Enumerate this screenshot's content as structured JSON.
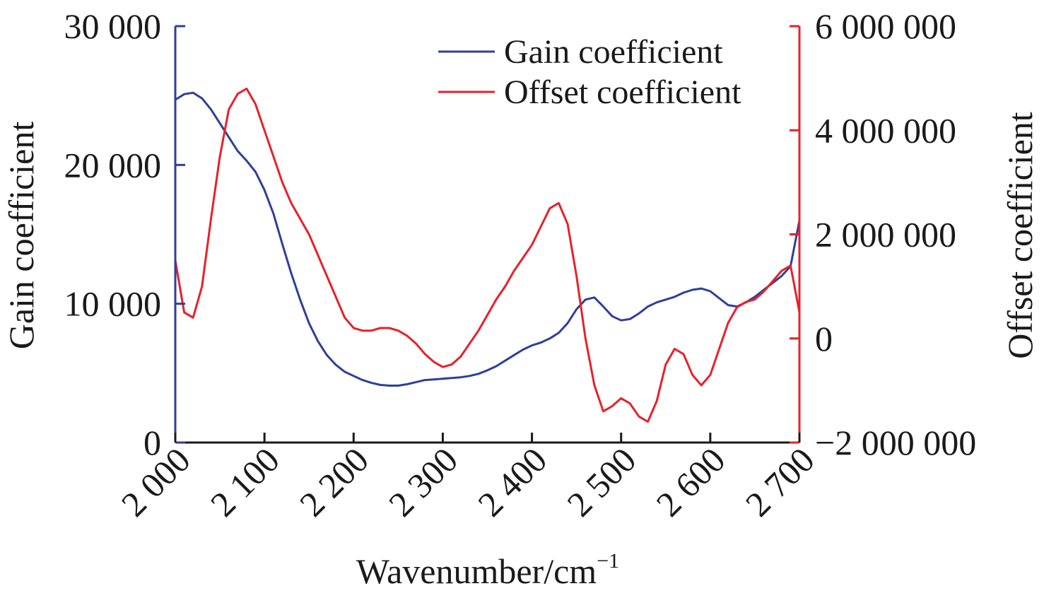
{
  "chart_data": {
    "type": "line",
    "xlabel": "Wavenumber/cm",
    "xlabel_sup": "−1",
    "ylabel_left": "Gain coefficient",
    "ylabel_right": "Offset coefficient",
    "xlim": [
      2000,
      2700
    ],
    "ylim_left": [
      0,
      30000
    ],
    "ylim_right": [
      -2000000,
      6000000
    ],
    "x_ticks": [
      2000,
      2100,
      2200,
      2300,
      2400,
      2500,
      2600,
      2700
    ],
    "x_tick_labels": [
      "2 000",
      "2 100",
      "2 200",
      "2 300",
      "2 400",
      "2 500",
      "2 600",
      "2 700"
    ],
    "y_left_ticks": [
      0,
      10000,
      20000,
      30000
    ],
    "y_left_tick_labels": [
      "0",
      "10 000",
      "20 000",
      "30 000"
    ],
    "y_right_ticks": [
      -2000000,
      0,
      2000000,
      4000000,
      6000000
    ],
    "y_right_tick_labels": [
      "−2 000 000",
      "0",
      "2 000 000",
      "4 000 000",
      "6 000 000"
    ],
    "legend_position": "top-right",
    "grid": false,
    "series": [
      {
        "name": "Gain coefficient",
        "axis": "left",
        "color": "#2e3f9a",
        "x": [
          2000,
          2010,
          2020,
          2030,
          2040,
          2050,
          2060,
          2070,
          2080,
          2090,
          2100,
          2110,
          2120,
          2130,
          2140,
          2150,
          2160,
          2170,
          2180,
          2190,
          2200,
          2210,
          2220,
          2230,
          2240,
          2250,
          2260,
          2270,
          2280,
          2290,
          2300,
          2310,
          2320,
          2330,
          2340,
          2350,
          2360,
          2370,
          2380,
          2390,
          2400,
          2410,
          2420,
          2430,
          2440,
          2450,
          2460,
          2470,
          2480,
          2490,
          2500,
          2510,
          2520,
          2530,
          2540,
          2550,
          2560,
          2570,
          2580,
          2590,
          2600,
          2610,
          2620,
          2630,
          2640,
          2650,
          2660,
          2670,
          2680,
          2690,
          2700
        ],
        "values": [
          24700,
          25100,
          25200,
          24800,
          24000,
          23000,
          22000,
          21000,
          20300,
          19500,
          18200,
          16500,
          14300,
          12200,
          10300,
          8600,
          7300,
          6300,
          5600,
          5100,
          4800,
          4500,
          4300,
          4150,
          4100,
          4100,
          4200,
          4350,
          4500,
          4550,
          4600,
          4650,
          4700,
          4800,
          4950,
          5200,
          5500,
          5900,
          6300,
          6700,
          7000,
          7200,
          7500,
          7900,
          8600,
          9600,
          10300,
          10450,
          9800,
          9100,
          8800,
          8900,
          9300,
          9800,
          10100,
          10300,
          10500,
          10800,
          11000,
          11100,
          10900,
          10400,
          9900,
          9800,
          10100,
          10500,
          11000,
          11500,
          12000,
          12700,
          16000
        ]
      },
      {
        "name": "Offset coefficient",
        "axis": "right",
        "color": "#e8202a",
        "x": [
          2000,
          2010,
          2020,
          2030,
          2040,
          2050,
          2060,
          2070,
          2080,
          2090,
          2100,
          2110,
          2120,
          2130,
          2140,
          2150,
          2160,
          2170,
          2180,
          2190,
          2200,
          2210,
          2220,
          2230,
          2240,
          2250,
          2260,
          2270,
          2280,
          2290,
          2300,
          2310,
          2320,
          2330,
          2340,
          2350,
          2360,
          2370,
          2380,
          2390,
          2400,
          2410,
          2420,
          2430,
          2440,
          2450,
          2460,
          2470,
          2480,
          2490,
          2500,
          2510,
          2520,
          2530,
          2540,
          2550,
          2560,
          2570,
          2580,
          2590,
          2600,
          2610,
          2620,
          2630,
          2640,
          2650,
          2660,
          2670,
          2680,
          2690,
          2700
        ],
        "values": [
          1500000,
          500000,
          400000,
          1000000,
          2300000,
          3500000,
          4400000,
          4700000,
          4800000,
          4500000,
          4000000,
          3500000,
          3000000,
          2600000,
          2300000,
          2000000,
          1600000,
          1200000,
          800000,
          400000,
          200000,
          150000,
          150000,
          200000,
          200000,
          150000,
          50000,
          -100000,
          -300000,
          -450000,
          -550000,
          -500000,
          -350000,
          -100000,
          150000,
          450000,
          750000,
          1000000,
          1300000,
          1550000,
          1800000,
          2150000,
          2500000,
          2600000,
          2200000,
          1200000,
          0,
          -900000,
          -1400000,
          -1300000,
          -1150000,
          -1250000,
          -1500000,
          -1600000,
          -1200000,
          -500000,
          -200000,
          -300000,
          -700000,
          -900000,
          -700000,
          -200000,
          300000,
          600000,
          700000,
          750000,
          900000,
          1100000,
          1300000,
          1400000,
          500000
        ]
      }
    ]
  }
}
